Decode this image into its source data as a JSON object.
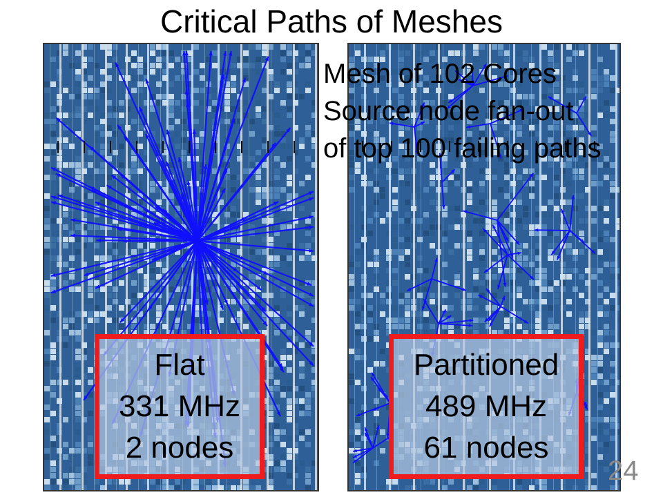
{
  "title": "Critical Paths of Meshes",
  "description": {
    "lines": [
      "Mesh of 102 Cores",
      "Source node fan-out",
      "of top 100 failing paths"
    ]
  },
  "flat": {
    "name": "Flat",
    "frequency": "331 MHz",
    "nodes": "2 nodes"
  },
  "partitioned": {
    "name": "Partitioned",
    "frequency": "489 MHz",
    "nodes": "61 nodes"
  },
  "slide_number": "24",
  "colors": {
    "die_background": "#2e5f96",
    "path_lines": "#1010ff",
    "highlight_box": "#ee1c1c"
  }
}
